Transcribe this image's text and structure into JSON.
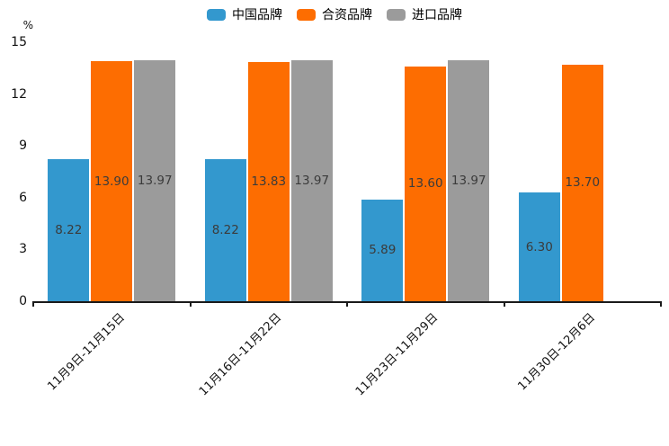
{
  "chart_data": {
    "type": "bar",
    "title": "",
    "ylabel": "%",
    "xlabel": "",
    "categories": [
      "11月9日-11月15日",
      "11月16日-11月22日",
      "11月23日-11月29日",
      "11月30日-12月6日"
    ],
    "series": [
      {
        "name": "中国品牌",
        "color": "#3398CE",
        "values": [
          8.22,
          8.22,
          5.89,
          6.3
        ]
      },
      {
        "name": "合资品牌",
        "color": "#FD6D01",
        "values": [
          13.9,
          13.83,
          13.6,
          13.7
        ]
      },
      {
        "name": "进口品牌",
        "color": "#9B9B9B",
        "values": [
          13.97,
          13.97,
          13.97,
          null
        ]
      }
    ],
    "ylim": [
      0,
      15
    ],
    "yticks": [
      0,
      3,
      6,
      9,
      12,
      15
    ],
    "value_label_decimals": 2,
    "legend_position": "top",
    "grid": false,
    "axis_color": "#1a1a1a",
    "value_label_color": "#3b3b3b",
    "tick_label_color": "#111111"
  }
}
